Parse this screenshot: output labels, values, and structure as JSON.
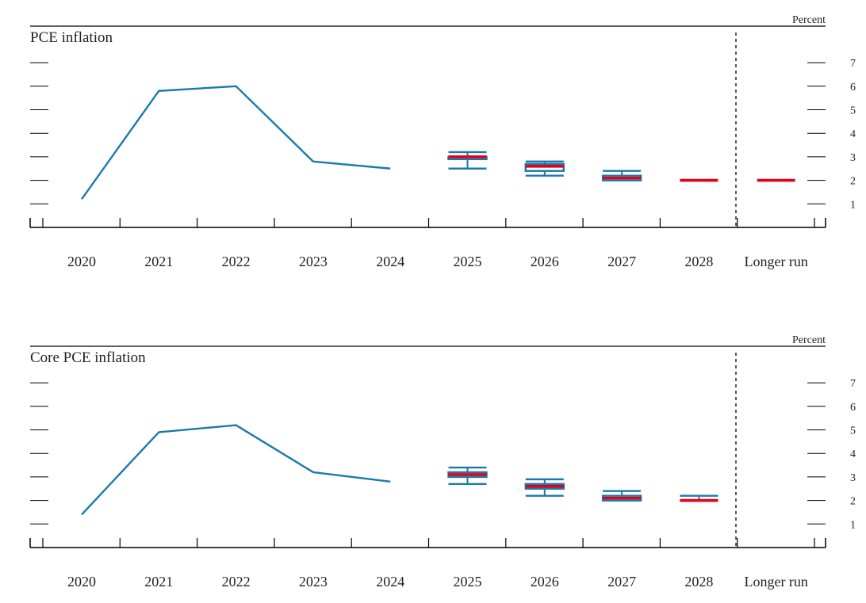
{
  "colors": {
    "line": "#1a7aab",
    "median": "#e3001b",
    "axis": "#000000",
    "text": "#222222"
  },
  "chart_data": [
    {
      "type": "line",
      "title": "PCE inflation",
      "unit_label": "Percent",
      "x_categories": [
        "2020",
        "2021",
        "2022",
        "2023",
        "2024",
        "2025",
        "2026",
        "2027",
        "2028",
        "Longer run"
      ],
      "y_ticks": [
        1,
        2,
        3,
        4,
        5,
        6,
        7
      ],
      "ylim": [
        0.05,
        8.5
      ],
      "grid": false,
      "series": [
        {
          "values": [
            {
              "x": "2020",
              "y": 1.2
            },
            {
              "x": "2021",
              "y": 5.8
            },
            {
              "x": "2022",
              "y": 6.0
            },
            {
              "x": "2023",
              "y": 2.8
            },
            {
              "x": "2024",
              "y": 2.5
            }
          ]
        }
      ],
      "projections": [
        {
          "x": "2025",
          "low": 2.5,
          "q1": 2.9,
          "median": 3.0,
          "q3": 3.0,
          "high": 3.2
        },
        {
          "x": "2026",
          "low": 2.2,
          "q1": 2.4,
          "median": 2.6,
          "q3": 2.7,
          "high": 2.8
        },
        {
          "x": "2027",
          "low": 2.0,
          "q1": 2.0,
          "median": 2.1,
          "q3": 2.2,
          "high": 2.4
        },
        {
          "x": "2028",
          "low": 2.0,
          "q1": 2.0,
          "median": 2.0,
          "q3": 2.0,
          "high": 2.0
        },
        {
          "x": "Longer run",
          "low": 2.0,
          "q1": 2.0,
          "median": 2.0,
          "q3": 2.0,
          "high": 2.0
        }
      ]
    },
    {
      "type": "line",
      "title": "Core PCE inflation",
      "unit_label": "Percent",
      "x_categories": [
        "2020",
        "2021",
        "2022",
        "2023",
        "2024",
        "2025",
        "2026",
        "2027",
        "2028",
        "Longer run"
      ],
      "y_ticks": [
        1,
        2,
        3,
        4,
        5,
        6,
        7
      ],
      "ylim": [
        0.05,
        8.5
      ],
      "grid": false,
      "series": [
        {
          "values": [
            {
              "x": "2020",
              "y": 1.4
            },
            {
              "x": "2021",
              "y": 4.9
            },
            {
              "x": "2022",
              "y": 5.2
            },
            {
              "x": "2023",
              "y": 3.2
            },
            {
              "x": "2024",
              "y": 2.8
            }
          ]
        }
      ],
      "projections": [
        {
          "x": "2025",
          "low": 2.7,
          "q1": 3.0,
          "median": 3.1,
          "q3": 3.2,
          "high": 3.4
        },
        {
          "x": "2026",
          "low": 2.2,
          "q1": 2.5,
          "median": 2.6,
          "q3": 2.7,
          "high": 2.9
        },
        {
          "x": "2027",
          "low": 2.0,
          "q1": 2.0,
          "median": 2.1,
          "q3": 2.2,
          "high": 2.4
        },
        {
          "x": "2028",
          "low": 2.0,
          "q1": 2.0,
          "median": 2.0,
          "q3": 2.0,
          "high": 2.2
        },
        {
          "x": "Longer run",
          "low": null,
          "q1": null,
          "median": null,
          "q3": null,
          "high": null
        }
      ]
    }
  ]
}
